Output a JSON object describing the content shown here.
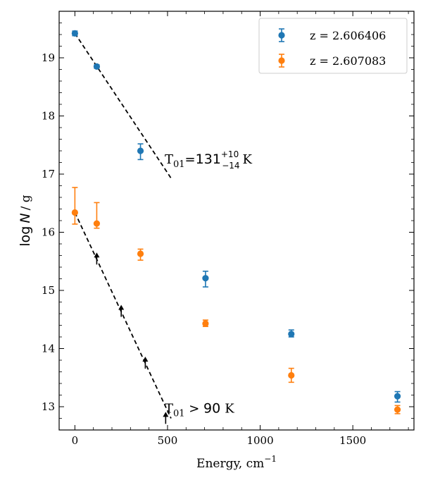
{
  "chart_data": {
    "type": "scatter",
    "xlabel": "Energy, cm",
    "xlabel_sup": "−1",
    "ylabel_main": "log",
    "ylabel_var": "N",
    "ylabel_tail": "/ g",
    "xlim": [
      -85,
      1830
    ],
    "ylim": [
      12.6,
      19.8
    ],
    "xticks": [
      0,
      500,
      1000,
      1500
    ],
    "xtick_labels": [
      "0",
      "500",
      "1000",
      "1500"
    ],
    "yticks": [
      13,
      14,
      15,
      16,
      17,
      18,
      19
    ],
    "ytick_labels": [
      "13",
      "14",
      "15",
      "16",
      "17",
      "18",
      "19"
    ],
    "legend_position": "top-right",
    "series": [
      {
        "name": "z = 2.606406",
        "color": "#1f77b4",
        "points": [
          {
            "x": 0,
            "y": 19.42,
            "err_lo": 0.04,
            "err_hi": 0.04
          },
          {
            "x": 118,
            "y": 18.85,
            "err_lo": 0.03,
            "err_hi": 0.03
          },
          {
            "x": 354,
            "y": 17.4,
            "err_lo": 0.15,
            "err_hi": 0.12
          },
          {
            "x": 705,
            "y": 15.21,
            "err_lo": 0.15,
            "err_hi": 0.12
          },
          {
            "x": 1168,
            "y": 14.25,
            "err_lo": 0.05,
            "err_hi": 0.07
          },
          {
            "x": 1741,
            "y": 13.18,
            "err_lo": 0.1,
            "err_hi": 0.08
          }
        ]
      },
      {
        "name": "z = 2.607083",
        "color": "#ff7f0e",
        "points": [
          {
            "x": 0,
            "y": 16.34,
            "err_lo": 0.2,
            "err_hi": 0.43
          },
          {
            "x": 118,
            "y": 16.15,
            "err_lo": 0.08,
            "err_hi": 0.36
          },
          {
            "x": 354,
            "y": 15.63,
            "err_lo": 0.11,
            "err_hi": 0.08
          },
          {
            "x": 705,
            "y": 14.43,
            "err_lo": 0.05,
            "err_hi": 0.06
          },
          {
            "x": 1168,
            "y": 13.54,
            "err_lo": 0.12,
            "err_hi": 0.12
          },
          {
            "x": 1741,
            "y": 12.95,
            "err_lo": 0.07,
            "err_hi": 0.07
          }
        ]
      }
    ],
    "fit_lines": [
      {
        "x": [
          0,
          519
        ],
        "y": [
          19.42,
          16.93
        ],
        "color": "#000000"
      },
      {
        "x": [
          0,
          519
        ],
        "y": [
          16.34,
          12.8
        ],
        "color": "#000000"
      }
    ],
    "lower_limit_arrows": [
      {
        "x": 118,
        "y": 15.53
      },
      {
        "x": 250,
        "y": 14.63
      },
      {
        "x": 380,
        "y": 13.74
      },
      {
        "x": 490,
        "y": 12.79
      }
    ],
    "annotations": [
      {
        "pre": "T",
        "sub": "01",
        "mid": "=",
        "value": "131",
        "sup": "+10",
        "sub2": "−14",
        "unit": "K",
        "x": 500,
        "y": 17.18
      },
      {
        "pre": "T",
        "sub": "01",
        "mid": " > ",
        "value": "90",
        "sup": "",
        "sub2": "",
        "unit": "K",
        "x": 500,
        "y": 12.9
      }
    ]
  }
}
